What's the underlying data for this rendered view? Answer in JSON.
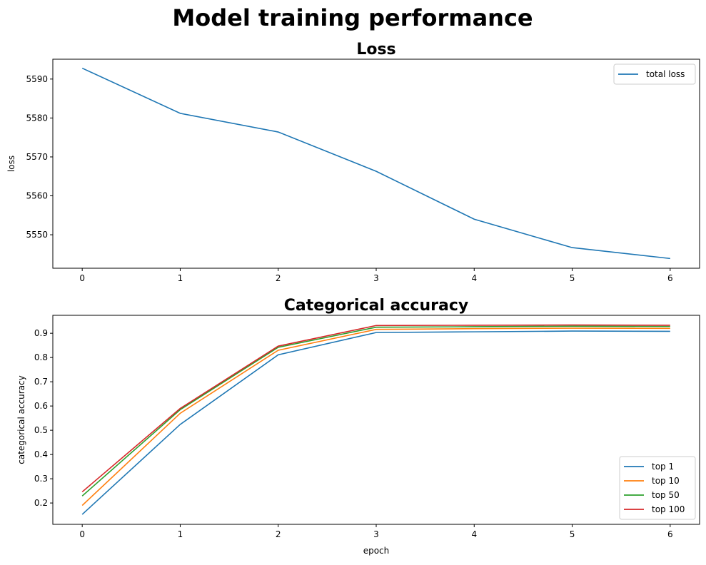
{
  "suptitle": "Model training performance",
  "chart_data": [
    {
      "type": "line",
      "title": "Loss",
      "xlabel": "",
      "ylabel": "loss",
      "x": [
        0,
        1,
        2,
        3,
        4,
        5,
        6
      ],
      "xticks": [
        "0",
        "1",
        "2",
        "3",
        "4",
        "5",
        "6"
      ],
      "yticks": [
        5550,
        5560,
        5570,
        5580,
        5590
      ],
      "xlim": [
        -0.3,
        6.3
      ],
      "ylim": [
        5541.4,
        5595.1
      ],
      "legend_position": "upper-right",
      "series": [
        {
          "name": "total loss",
          "color": "#1f77b4",
          "values": [
            5592.8,
            5581.2,
            5576.4,
            5566.3,
            5554.0,
            5546.7,
            5543.9
          ]
        }
      ]
    },
    {
      "type": "line",
      "title": "Categorical accuracy",
      "xlabel": "epoch",
      "ylabel": "categorical accuracy",
      "x": [
        0,
        1,
        2,
        3,
        4,
        5,
        6
      ],
      "xticks": [
        "0",
        "1",
        "2",
        "3",
        "4",
        "5",
        "6"
      ],
      "yticks": [
        "0.2",
        "0.3",
        "0.4",
        "0.5",
        "0.6",
        "0.7",
        "0.8",
        "0.9"
      ],
      "xlim": [
        -0.3,
        6.3
      ],
      "ylim": [
        0.112,
        0.974
      ],
      "legend_position": "lower-right",
      "series": [
        {
          "name": "top 1",
          "color": "#1f77b4",
          "values": [
            0.153,
            0.524,
            0.811,
            0.903,
            0.906,
            0.909,
            0.908
          ]
        },
        {
          "name": "top 10",
          "color": "#ff7f0e",
          "values": [
            0.19,
            0.57,
            0.83,
            0.916,
            0.919,
            0.921,
            0.92
          ]
        },
        {
          "name": "top 50",
          "color": "#2ca02c",
          "values": [
            0.229,
            0.585,
            0.842,
            0.925,
            0.927,
            0.929,
            0.928
          ]
        },
        {
          "name": "top 100",
          "color": "#d62728",
          "values": [
            0.246,
            0.59,
            0.847,
            0.932,
            0.933,
            0.934,
            0.933
          ]
        }
      ]
    }
  ]
}
